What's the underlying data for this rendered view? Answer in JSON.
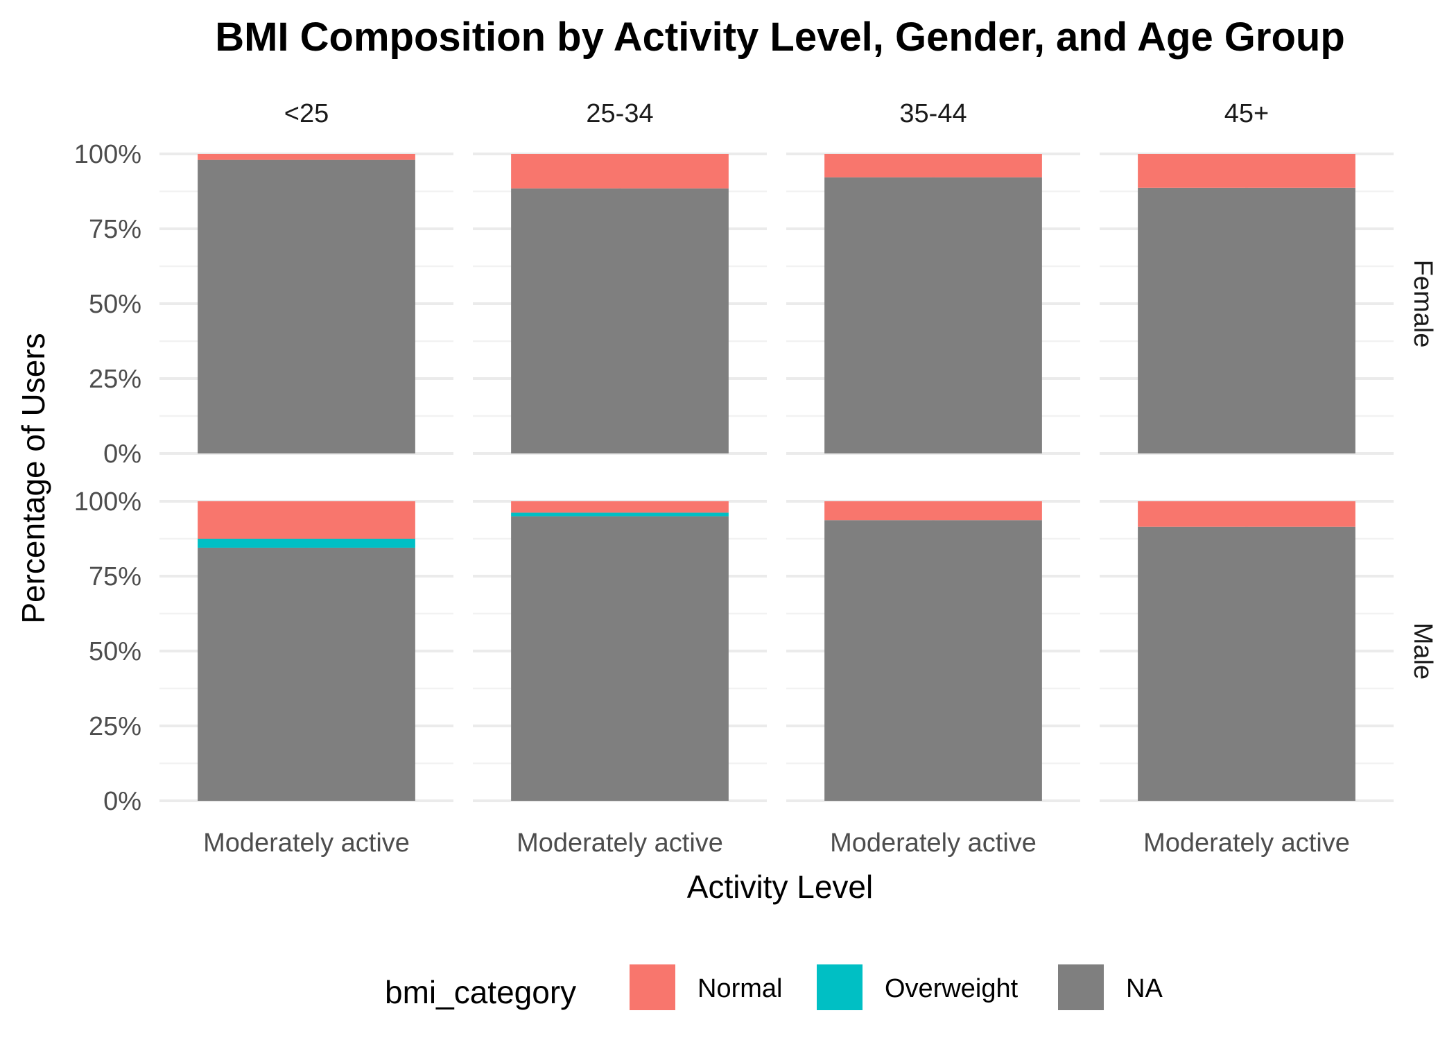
{
  "chart_data": {
    "type": "bar",
    "stacked": true,
    "title": "BMI Composition by Activity Level, Gender, and Age Group",
    "xlabel": "Activity Level",
    "ylabel": "Percentage of Users",
    "ylim": [
      0,
      100
    ],
    "y_ticks": [
      "0%",
      "25%",
      "50%",
      "75%",
      "100%"
    ],
    "y_tick_values": [
      0,
      25,
      50,
      75,
      100
    ],
    "categories": [
      "Moderately active"
    ],
    "facet_columns": [
      "<25",
      "25-34",
      "35-44",
      "45+"
    ],
    "facet_rows": [
      "Female",
      "Male"
    ],
    "grid": true,
    "legend": {
      "title": "bmi_category",
      "position": "bottom",
      "entries": [
        {
          "name": "Normal",
          "color": "#F8766D"
        },
        {
          "name": "Overweight",
          "color": "#00BFC4"
        },
        {
          "name": "NA",
          "color": "#7F7F7F"
        }
      ]
    },
    "stack_order": [
      "NA",
      "Overweight",
      "Normal"
    ],
    "panels": [
      {
        "row": "Female",
        "col": "<25",
        "values": {
          "Normal": 2,
          "Overweight": 0,
          "NA": 98
        }
      },
      {
        "row": "Female",
        "col": "25-34",
        "values": {
          "Normal": 11.5,
          "Overweight": 0,
          "NA": 88.5
        }
      },
      {
        "row": "Female",
        "col": "35-44",
        "values": {
          "Normal": 7.8,
          "Overweight": 0,
          "NA": 92.2
        }
      },
      {
        "row": "Female",
        "col": "45+",
        "values": {
          "Normal": 11.3,
          "Overweight": 0,
          "NA": 88.7
        }
      },
      {
        "row": "Male",
        "col": "<25",
        "values": {
          "Normal": 12.5,
          "Overweight": 3,
          "NA": 84.5
        }
      },
      {
        "row": "Male",
        "col": "25-34",
        "values": {
          "Normal": 3.8,
          "Overweight": 1.2,
          "NA": 95
        }
      },
      {
        "row": "Male",
        "col": "35-44",
        "values": {
          "Normal": 6.3,
          "Overweight": 0,
          "NA": 93.7
        }
      },
      {
        "row": "Male",
        "col": "45+",
        "values": {
          "Normal": 8.5,
          "Overweight": 0,
          "NA": 91.5
        }
      }
    ]
  }
}
